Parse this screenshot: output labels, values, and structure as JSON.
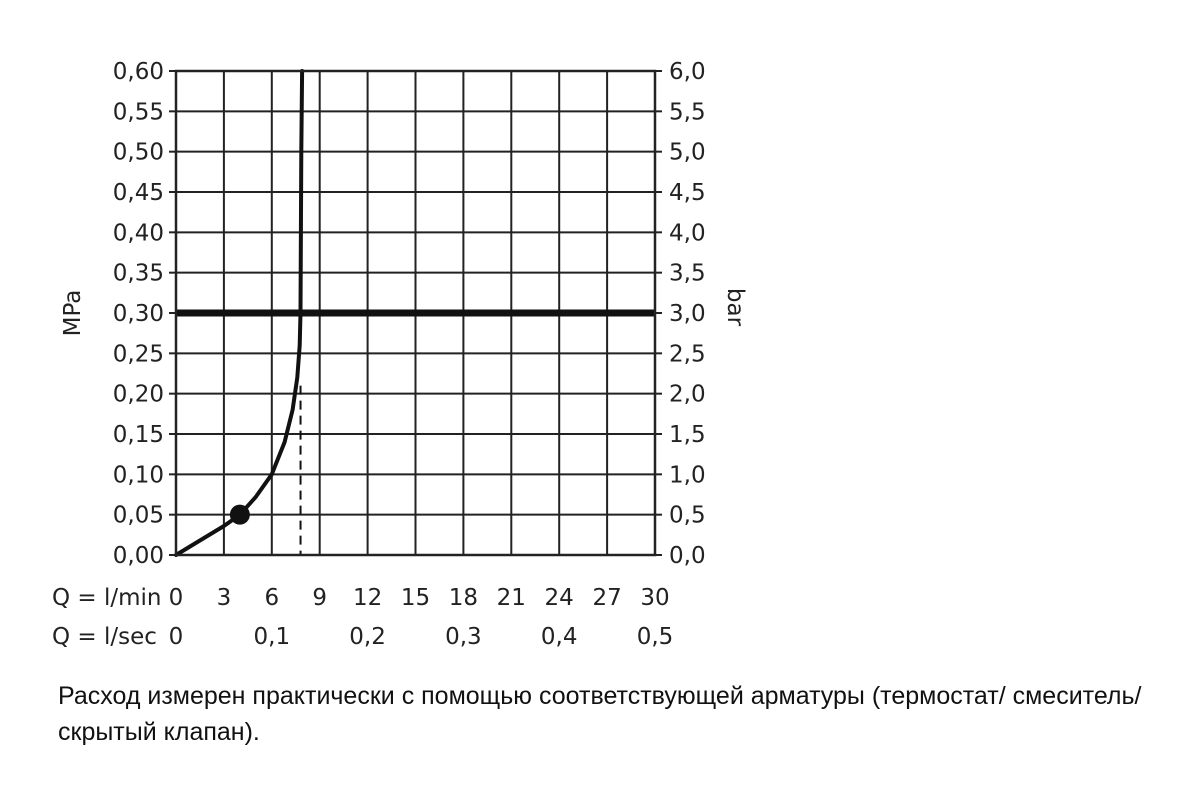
{
  "chart_data": {
    "type": "line",
    "y_left_label": "MPa",
    "y_right_label": "bar",
    "x_row1_label": "Q = l/min",
    "x_row2_label": "Q = l/sec",
    "xlim": [
      0,
      30
    ],
    "ylim": [
      0,
      0.6
    ],
    "y_left_ticks": [
      "0,00",
      "0,05",
      "0,10",
      "0,15",
      "0,20",
      "0,25",
      "0,30",
      "0,35",
      "0,40",
      "0,45",
      "0,50",
      "0,55",
      "0,60"
    ],
    "y_right_ticks": [
      "0,0",
      "0,5",
      "1,0",
      "1,5",
      "2,0",
      "2,5",
      "3,0",
      "3,5",
      "4,0",
      "4,5",
      "5,0",
      "5,5",
      "6,0"
    ],
    "x_lmin_ticks": [
      "0",
      "3",
      "6",
      "9",
      "12",
      "15",
      "18",
      "21",
      "24",
      "27",
      "30"
    ],
    "x_lsec_ticks": [
      {
        "x": 0,
        "label": "0"
      },
      {
        "x": 6,
        "label": "0,1"
      },
      {
        "x": 12,
        "label": "0,2"
      },
      {
        "x": 18,
        "label": "0,3"
      },
      {
        "x": 24,
        "label": "0,4"
      },
      {
        "x": 30,
        "label": "0,5"
      }
    ],
    "grid": true,
    "series": [
      {
        "x": [
          0,
          1.5,
          3.0,
          4.0,
          5.0,
          6.0,
          6.8,
          7.3,
          7.6,
          7.75,
          7.8,
          7.82,
          7.85,
          7.9
        ],
        "y": [
          0,
          0.018,
          0.036,
          0.05,
          0.072,
          0.1,
          0.14,
          0.18,
          0.22,
          0.26,
          0.3,
          0.4,
          0.5,
          0.6
        ]
      }
    ],
    "reference_line_y": 0.3,
    "marker_point": {
      "x": 4.0,
      "y": 0.05
    },
    "dashed_line_x": 7.8
  },
  "caption": "Расход измерен практически с помощью соответствующей арматуры (термостат/ смеситель/скрытый клапан)."
}
